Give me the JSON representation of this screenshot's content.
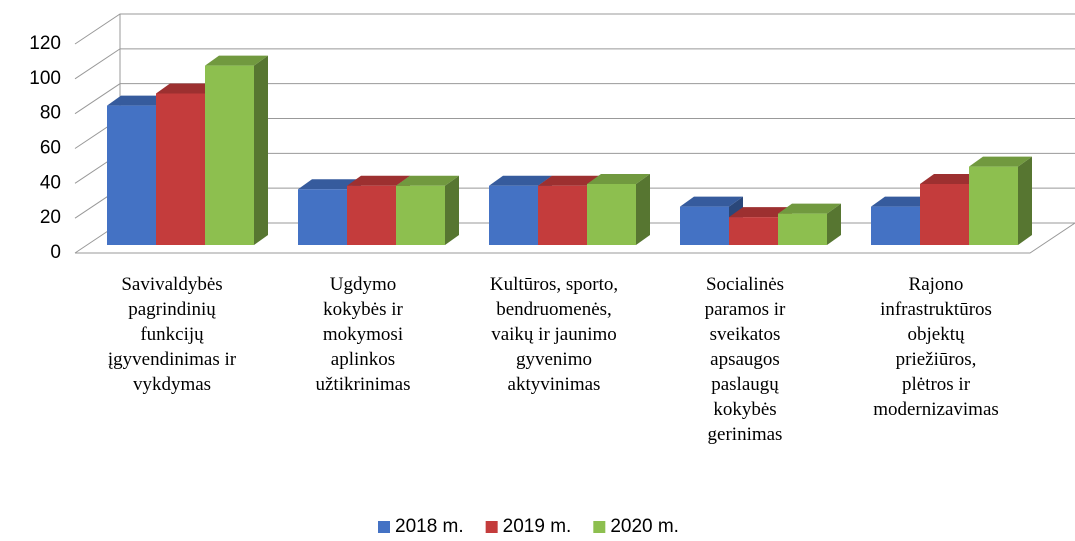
{
  "chart_data": {
    "type": "bar3d",
    "categories": [
      "Savivaldybės\npagrindinių\nfunkcijų\nįgyvendinimas ir\nvykdymas",
      "Ugdymo\nkokybės ir\nmokymosi\naplinkos\nužtikrinimas",
      "Kultūros, sporto,\nbendruomenės,\nvaikų ir jaunimo\ngyvenimo\naktyvinimas",
      "Socialinės\nparamos ir\nsveikatos\napsaugos\npaslaugų\nkokybės\ngerinimas",
      "Rajono\ninfrastruktūros\nobjektų\npriežiūros,\nplėtros ir\nmodernizavimas"
    ],
    "series": [
      {
        "name": "2018 m.",
        "color": "#4472c4",
        "values": [
          80,
          32,
          34,
          22,
          22
        ]
      },
      {
        "name": "2019 m.",
        "color": "#c43c3c",
        "values": [
          87,
          34,
          34,
          16,
          35
        ]
      },
      {
        "name": "2020 m.",
        "color": "#8dbf4f",
        "values": [
          103,
          34,
          35,
          18,
          45
        ]
      }
    ],
    "ylim": [
      0,
      120
    ],
    "yticks": [
      0,
      20,
      40,
      60,
      80,
      100,
      120
    ],
    "grid": true,
    "legend": "bottom"
  }
}
